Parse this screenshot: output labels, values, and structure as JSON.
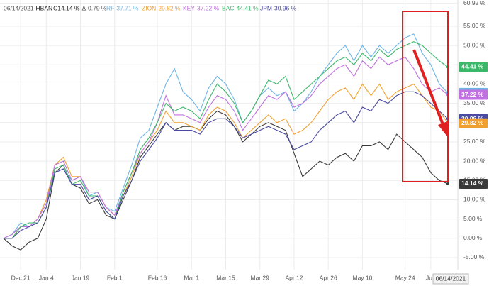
{
  "chart_data": {
    "type": "line",
    "header": {
      "date": "06/14/2021",
      "close": "C14.14 %",
      "change": "Δ-0.79 %"
    },
    "categories": [
      null,
      null,
      "Dec 21",
      null,
      null,
      "Jan 4",
      null,
      null,
      null,
      "Jan 19",
      null,
      null,
      null,
      "Feb 1",
      null,
      null,
      null,
      null,
      "Feb 16",
      null,
      null,
      null,
      "Mar 1",
      null,
      null,
      null,
      "Mar 15",
      null,
      null,
      null,
      "Mar 29",
      null,
      null,
      null,
      "Apr 12",
      null,
      null,
      null,
      "Apr 26",
      null,
      null,
      null,
      "May 10",
      null,
      null,
      null,
      null,
      "May 24",
      null,
      null,
      "Jun",
      null,
      "06/14/2021"
    ],
    "series": [
      {
        "name": "HBAN",
        "color": "#3a3a3a",
        "end_label": "14.14 %",
        "values": [
          0,
          -2,
          -3,
          -1,
          0,
          5,
          17,
          19,
          14,
          13,
          9,
          10,
          6,
          5,
          10,
          15,
          21,
          24,
          27,
          30,
          28,
          29,
          29,
          28,
          31,
          33,
          32,
          29,
          25,
          27,
          29,
          30,
          29,
          28,
          22,
          16,
          18,
          20,
          19,
          21,
          22,
          20,
          24,
          24,
          25,
          23,
          27,
          25,
          23,
          21,
          17,
          15,
          14.14
        ]
      },
      {
        "name": "RF",
        "color": "#6cb4e4",
        "end_label": "37.71 %",
        "values": [
          0,
          1,
          4,
          3,
          5,
          9,
          17,
          18,
          15,
          16,
          11,
          12,
          8,
          7,
          13,
          19,
          26,
          28,
          34,
          40,
          44,
          38,
          36,
          33,
          39,
          42,
          40,
          36,
          30,
          33,
          37,
          39,
          37,
          38,
          33,
          35,
          38,
          42,
          45,
          48,
          50,
          46,
          50,
          47,
          50,
          48,
          50,
          52,
          53,
          48,
          45,
          40,
          37.71
        ]
      },
      {
        "name": "ZION",
        "color": "#f0a030",
        "end_label": "29.82 %",
        "values": [
          0,
          0,
          3,
          3,
          5,
          10,
          19,
          21,
          16,
          16,
          12,
          12,
          8,
          6,
          11,
          16,
          22,
          25,
          28,
          33,
          30,
          30,
          29,
          28,
          32,
          34,
          33,
          30,
          26,
          28,
          30,
          32,
          30,
          31,
          27,
          28,
          30,
          33,
          36,
          38,
          39,
          36,
          40,
          37,
          40,
          36,
          38,
          39,
          40,
          37,
          34,
          33,
          29.82
        ]
      },
      {
        "name": "KEY",
        "color": "#c070e0",
        "end_label": "37.22 %",
        "values": [
          0,
          1,
          3,
          3,
          5,
          9,
          19,
          20,
          15,
          16,
          12,
          12,
          8,
          6,
          12,
          17,
          22,
          25,
          30,
          37,
          32,
          32,
          31,
          30,
          34,
          37,
          36,
          33,
          28,
          31,
          34,
          37,
          36,
          38,
          34,
          35,
          37,
          40,
          42,
          44,
          45,
          42,
          46,
          44,
          47,
          45,
          46,
          47,
          44,
          40,
          38,
          39,
          37.22
        ]
      },
      {
        "name": "BAC",
        "color": "#3cb86a",
        "end_label": "44.41 %",
        "values": [
          0,
          0,
          3,
          4,
          4,
          8,
          18,
          19,
          14,
          15,
          11,
          11,
          7,
          5,
          12,
          17,
          23,
          26,
          30,
          35,
          33,
          34,
          33,
          31,
          36,
          40,
          38,
          35,
          30,
          33,
          37,
          41,
          40,
          42,
          36,
          38,
          40,
          42,
          44,
          46,
          47,
          45,
          48,
          46,
          49,
          47,
          49,
          50,
          51,
          50,
          48,
          46,
          44.41
        ]
      },
      {
        "name": "JPM",
        "color": "#4a4aa0",
        "end_label": "30.96 %",
        "values": [
          0,
          0,
          2,
          3,
          4,
          8,
          17,
          18,
          14,
          14,
          10,
          11,
          7,
          5,
          11,
          15,
          20,
          23,
          26,
          30,
          28,
          28,
          28,
          27,
          30,
          31,
          31,
          29,
          26,
          27,
          28,
          29,
          28,
          27,
          23,
          24,
          25,
          28,
          30,
          32,
          33,
          30,
          34,
          33,
          36,
          35,
          37,
          38,
          38,
          37,
          35,
          33,
          30.96
        ]
      }
    ],
    "ylim": [
      -10.9,
      61.8
    ],
    "yticks": [
      {
        "value": -5,
        "label": "-5.00 %"
      },
      {
        "value": 0,
        "label": "0.00 %"
      },
      {
        "value": 5,
        "label": "5.00 %"
      },
      {
        "value": 10,
        "label": "10.00 %"
      },
      {
        "value": 15,
        "label": "15.00 %"
      },
      {
        "value": 20,
        "label": "20.00 %"
      },
      {
        "value": 25,
        "label": "25.00 %"
      },
      {
        "value": 30,
        "label": "30.00 %"
      },
      {
        "value": 35,
        "label": "35.00 %"
      },
      {
        "value": 40,
        "label": "40.00 %"
      },
      {
        "value": 45,
        "label": "45.00 %"
      },
      {
        "value": 50,
        "label": "50.00 %"
      },
      {
        "value": 55,
        "label": "55.00 %"
      },
      {
        "value": 60.92,
        "label": "60.92 %"
      }
    ],
    "grid": true
  }
}
